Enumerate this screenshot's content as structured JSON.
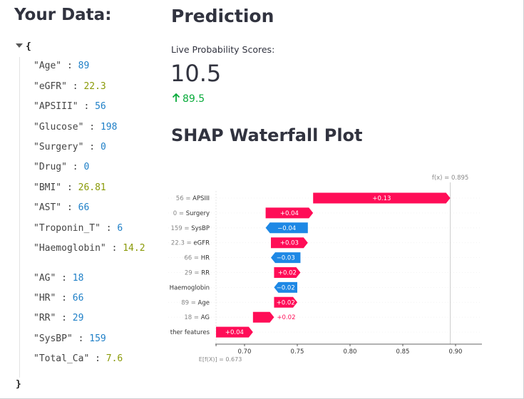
{
  "left": {
    "title": "Your Data:",
    "json_open": "{",
    "json_close": "}",
    "entries": [
      {
        "key": "\"Age\"",
        "value": "89",
        "kind": "num"
      },
      {
        "key": "\"eGFR\"",
        "value": "22.3",
        "kind": "flt"
      },
      {
        "key": "\"APSIII\"",
        "value": "56",
        "kind": "num"
      },
      {
        "key": "\"Glucose\"",
        "value": "198",
        "kind": "num"
      },
      {
        "key": "\"Surgery\"",
        "value": "0",
        "kind": "num"
      },
      {
        "key": "\"Drug\"",
        "value": "0",
        "kind": "num"
      },
      {
        "key": "\"BMI\"",
        "value": "26.81",
        "kind": "flt"
      },
      {
        "key": "\"AST\"",
        "value": "66",
        "kind": "num"
      },
      {
        "key": "\"Troponin_T\"",
        "value": "6",
        "kind": "num"
      },
      {
        "key": "\"Haemoglobin\"",
        "value": "14.2",
        "kind": "flt"
      },
      {
        "key": "\"AG\"",
        "value": "18",
        "kind": "num"
      },
      {
        "key": "\"HR\"",
        "value": "66",
        "kind": "num"
      },
      {
        "key": "\"RR\"",
        "value": "29",
        "kind": "num"
      },
      {
        "key": "\"SysBP\"",
        "value": "159",
        "kind": "num"
      },
      {
        "key": "\"Total_Ca\"",
        "value": "7.6",
        "kind": "flt"
      }
    ]
  },
  "prediction": {
    "title": "Prediction",
    "metric_label": "Live Probability Scores:",
    "metric_value": "10.5",
    "metric_delta": "89.5",
    "delta_icon": "arrow-up-icon",
    "delta_color": "#09ab3b"
  },
  "shap": {
    "title": "SHAP Waterfall Plot"
  },
  "chart_data": {
    "type": "bar",
    "subtype": "shap-waterfall",
    "fx_label": "f(x) = 0.895",
    "fx": 0.895,
    "efx_label": "E[f(X)] = 0.673",
    "efx": 0.673,
    "xlim": [
      0.675,
      0.925
    ],
    "xticks": [
      "0.70",
      "0.75",
      "0.80",
      "0.85",
      "0.90"
    ],
    "xtick_values": [
      0.7,
      0.75,
      0.8,
      0.85,
      0.9
    ],
    "positive_color": "#ff0d57",
    "negative_color": "#1e88e5",
    "features": [
      {
        "label": "56 = APSIII",
        "value": 0.13,
        "text": "+0.13",
        "start": 0.765,
        "end": 0.895
      },
      {
        "label": "0 = Surgery",
        "value": 0.04,
        "text": "+0.04",
        "start": 0.72,
        "end": 0.765
      },
      {
        "label": "159 = SysBP",
        "value": -0.04,
        "text": "−0.04",
        "start": 0.76,
        "end": 0.72
      },
      {
        "label": "22.3 = eGFR",
        "value": 0.03,
        "text": "+0.03",
        "start": 0.725,
        "end": 0.76
      },
      {
        "label": "66 = HR",
        "value": -0.03,
        "text": "−0.03",
        "start": 0.753,
        "end": 0.725
      },
      {
        "label": "29 = RR",
        "value": 0.02,
        "text": "+0.02",
        "start": 0.728,
        "end": 0.753
      },
      {
        "label": "Haemoglobin",
        "value": -0.02,
        "text": "−0.02",
        "start": 0.75,
        "end": 0.728
      },
      {
        "label": "89 = Age",
        "value": 0.02,
        "text": "+0.02",
        "start": 0.728,
        "end": 0.75
      },
      {
        "label": "18 = AG",
        "value": 0.02,
        "text": "+0.02",
        "start": 0.708,
        "end": 0.728
      },
      {
        "label": "ther features",
        "value": 0.04,
        "text": "+0.04",
        "start": 0.673,
        "end": 0.708
      }
    ]
  }
}
